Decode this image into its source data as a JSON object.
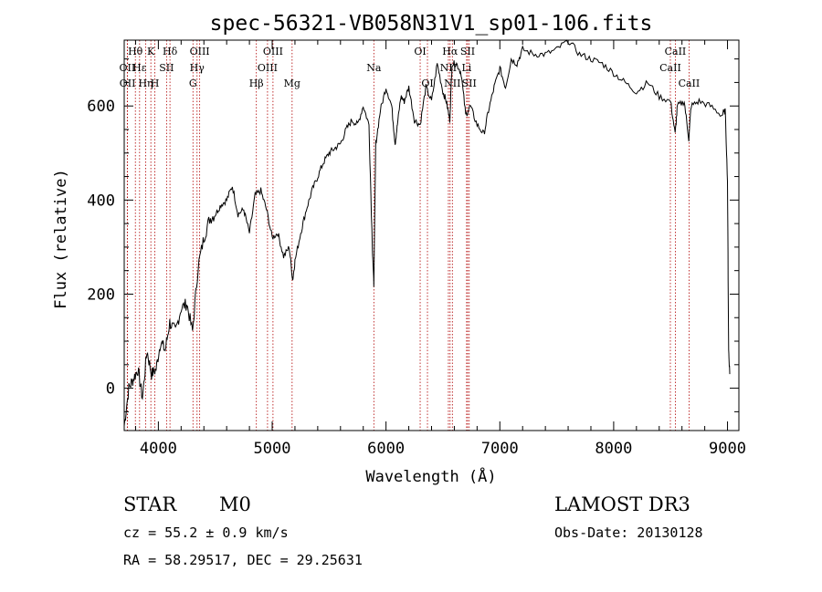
{
  "chart_data": {
    "type": "line",
    "title": "spec-56321-VB058N31V1_sp01-106.fits",
    "xlabel": "Wavelength (Å)",
    "ylabel": "Flux (relative)",
    "xlim": [
      3700,
      9100
    ],
    "ylim": [
      -90,
      740
    ],
    "xticks": [
      4000,
      5000,
      6000,
      7000,
      8000,
      9000
    ],
    "yticks": [
      0,
      200,
      400,
      600
    ],
    "spectrum": {
      "x": [
        3700,
        3740,
        3780,
        3820,
        3860,
        3900,
        3940,
        3980,
        4020,
        4060,
        4100,
        4150,
        4200,
        4250,
        4300,
        4350,
        4400,
        4450,
        4500,
        4550,
        4600,
        4650,
        4700,
        4750,
        4800,
        4850,
        4900,
        4950,
        5000,
        5050,
        5100,
        5150,
        5180,
        5200,
        5250,
        5300,
        5350,
        5400,
        5450,
        5500,
        5550,
        5600,
        5650,
        5700,
        5750,
        5800,
        5850,
        5880,
        5893,
        5910,
        5950,
        6000,
        6050,
        6080,
        6100,
        6130,
        6160,
        6200,
        6250,
        6300,
        6350,
        6400,
        6450,
        6500,
        6530,
        6560,
        6580,
        6620,
        6660,
        6700,
        6740,
        6800,
        6860,
        6900,
        6950,
        7000,
        7050,
        7100,
        7150,
        7200,
        7300,
        7400,
        7500,
        7600,
        7700,
        7800,
        7900,
        8000,
        8100,
        8200,
        8300,
        8400,
        8500,
        8540,
        8560,
        8620,
        8660,
        8680,
        8750,
        8850,
        8950,
        8980,
        9000,
        9010,
        9020
      ],
      "y": [
        -80,
        0,
        20,
        40,
        -20,
        80,
        30,
        40,
        100,
        80,
        140,
        120,
        170,
        180,
        120,
        260,
        320,
        360,
        370,
        390,
        400,
        430,
        370,
        380,
        330,
        410,
        420,
        380,
        320,
        330,
        280,
        300,
        230,
        270,
        330,
        380,
        420,
        450,
        480,
        500,
        510,
        520,
        550,
        570,
        560,
        600,
        560,
        300,
        220,
        520,
        590,
        640,
        600,
        520,
        560,
        620,
        610,
        640,
        570,
        560,
        640,
        610,
        690,
        630,
        610,
        570,
        690,
        690,
        670,
        580,
        600,
        560,
        540,
        590,
        640,
        680,
        640,
        700,
        690,
        720,
        710,
        710,
        720,
        740,
        710,
        700,
        690,
        670,
        650,
        630,
        650,
        620,
        610,
        540,
        600,
        610,
        530,
        600,
        610,
        600,
        580,
        590,
        440,
        80,
        30
      ]
    },
    "lines": [
      {
        "name": "Hδ",
        "x": 4102,
        "row": 1
      },
      {
        "name": "Hθ",
        "x": 3798,
        "row": 1
      },
      {
        "name": "OII",
        "x": 3727,
        "row": 2
      },
      {
        "name": "OII",
        "x": 3729,
        "row": 3
      },
      {
        "name": "Hε",
        "x": 3835,
        "row": 2
      },
      {
        "name": "Hη",
        "x": 3889,
        "row": 3
      },
      {
        "name": "K",
        "x": 3934,
        "row": 1
      },
      {
        "name": "H",
        "x": 3969,
        "row": 3
      },
      {
        "name": "SII",
        "x": 4072,
        "row": 2
      },
      {
        "name": "OIII",
        "x": 4363,
        "row": 1
      },
      {
        "name": "Hγ",
        "x": 4340,
        "row": 2
      },
      {
        "name": "G",
        "x": 4304,
        "row": 3
      },
      {
        "name": "Hβ",
        "x": 4861,
        "row": 3
      },
      {
        "name": "OIII",
        "x": 5007,
        "row": 1
      },
      {
        "name": "OIII",
        "x": 4959,
        "row": 2
      },
      {
        "name": "Mg",
        "x": 5175,
        "row": 3
      },
      {
        "name": "Na",
        "x": 5893,
        "row": 2
      },
      {
        "name": "OI",
        "x": 6300,
        "row": 1
      },
      {
        "name": "OI",
        "x": 6364,
        "row": 3
      },
      {
        "name": "Hα",
        "x": 6563,
        "row": 1
      },
      {
        "name": "SII",
        "x": 6717,
        "row": 1
      },
      {
        "name": "NII",
        "x": 6548,
        "row": 2
      },
      {
        "name": "Li",
        "x": 6708,
        "row": 2
      },
      {
        "name": "NII",
        "x": 6583,
        "row": 3
      },
      {
        "name": "SII",
        "x": 6731,
        "row": 3
      },
      {
        "name": "CaII",
        "x": 8542,
        "row": 1
      },
      {
        "name": "CaII",
        "x": 8498,
        "row": 2
      },
      {
        "name": "CaII",
        "x": 8662,
        "row": 3
      }
    ]
  },
  "footer": {
    "class": "STAR",
    "subclass": "M0",
    "survey": "LAMOST DR3",
    "cz": "cz = 55.2 ± 0.9 km/s",
    "obs_date": "Obs-Date: 20130128",
    "radec": "RA =  58.29517, DEC =  29.25631"
  }
}
